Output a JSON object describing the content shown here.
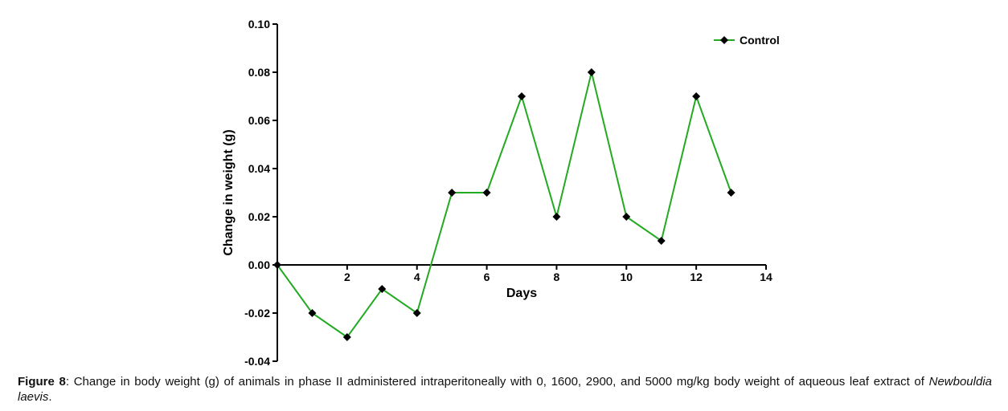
{
  "chart_data": {
    "type": "line",
    "title": "",
    "xlabel": "Days",
    "ylabel": "Change in weight (g)",
    "xlim": [
      0,
      14
    ],
    "ylim": [
      -0.04,
      0.1
    ],
    "x_ticks": [
      "2",
      "4",
      "6",
      "8",
      "10",
      "12",
      "14"
    ],
    "y_ticks": [
      "0.10",
      "0.08",
      "0.06",
      "0.04",
      "0.02",
      "0.00",
      "-0.02",
      "-0.04"
    ],
    "grid": false,
    "legend_position": "top-right",
    "marker": "diamond",
    "series": [
      {
        "name": "Control",
        "color": "#22aa22",
        "marker_color": "#000000",
        "x": [
          0,
          1,
          2,
          3,
          4,
          5,
          6,
          7,
          8,
          9,
          10,
          11,
          12,
          13
        ],
        "values": [
          0.0,
          -0.02,
          -0.03,
          -0.01,
          -0.02,
          0.03,
          0.03,
          0.07,
          0.02,
          0.08,
          0.02,
          0.01,
          0.07,
          0.03
        ]
      }
    ]
  },
  "caption": {
    "label": "Figure 8",
    "text": ": Change in body weight (g) of animals in phase II administered intraperitoneally with 0, 1600, 2900, and 5000 mg/kg body weight of aqueous leaf extract of ",
    "species": "Newbouldia laevis",
    "end": "."
  }
}
